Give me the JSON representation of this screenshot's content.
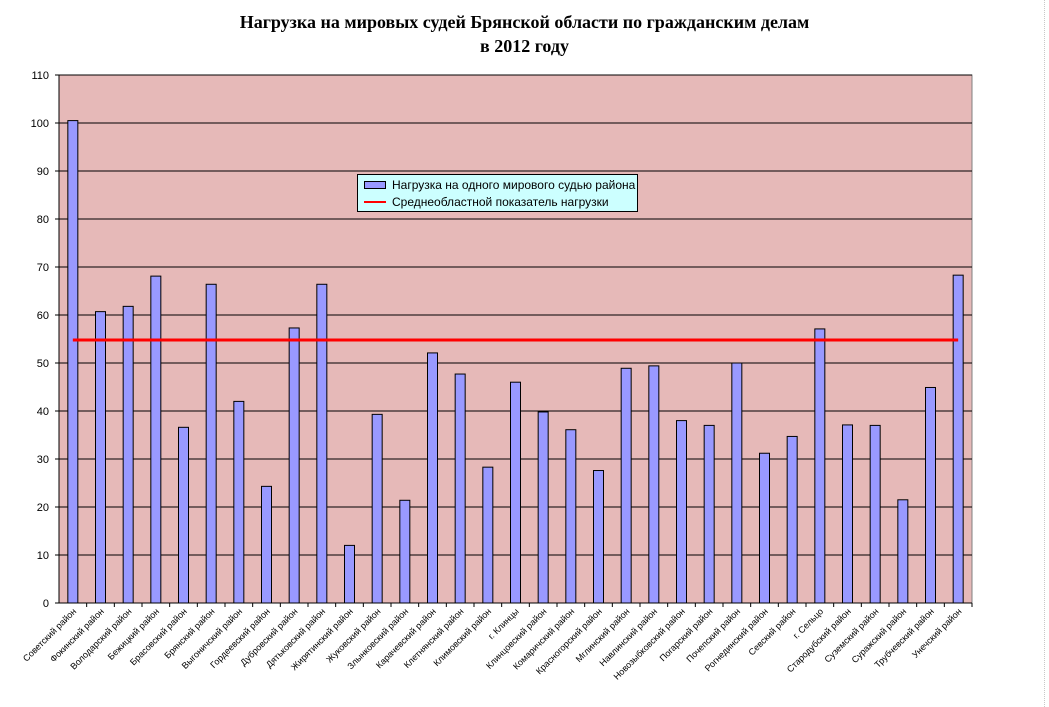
{
  "title_lines": [
    "Нагрузка на мировых судей Брянской области по гражданским делам",
    "в 2012 году"
  ],
  "colors": {
    "plot_background": "#e6b9b8",
    "bar_fill": "#9999ff",
    "bar_stroke": "#000000",
    "average_line": "#ff0000",
    "legend_background": "#ccffff"
  },
  "chart_data": {
    "type": "bar",
    "title": "Нагрузка на мировых судей Брянской области по гражданским делам в 2012 году",
    "categories": [
      "Советский район",
      "Фокинский район",
      "Володарский район",
      "Бежицкий район",
      "Брасовский район",
      "Брянский район",
      "Выгоничский район",
      "Гордеевский район",
      "Дубровский район",
      "Дятьковский район",
      "Жирятинский район",
      "Жуковский район",
      "Злынковский район",
      "Карачевский район",
      "Клетнянский район",
      "Климовский район",
      "г. Клинцы",
      "Клинцовский район",
      "Комаричский район",
      "Красногорский район",
      "Мглинский район",
      "Навлинский район",
      "Новозыбковский район",
      "Погарский район",
      "Почепский район",
      "Рогнединский район",
      "Севский район",
      "г. Сельцо",
      "Стародубский район",
      "Суземский район",
      "Суражский район",
      "Трубчевский район",
      "Унечский район"
    ],
    "series": [
      {
        "name": "Нагрузка на одного мирового судью района",
        "values": [
          100.5,
          60.7,
          61.8,
          68.1,
          36.6,
          66.4,
          42.0,
          24.3,
          57.3,
          66.4,
          12.0,
          39.3,
          21.4,
          52.1,
          47.7,
          28.3,
          46.0,
          39.8,
          36.1,
          27.6,
          48.9,
          49.4,
          38.0,
          37.0,
          50.0,
          31.2,
          34.7,
          57.1,
          37.1,
          37.0,
          21.5,
          44.9,
          68.3
        ]
      },
      {
        "name": "Среднеобластной показатель нагрузки",
        "type": "line",
        "value": 54.8
      }
    ],
    "ylim": [
      0,
      110
    ],
    "yticks": [
      0,
      10,
      20,
      30,
      40,
      50,
      60,
      70,
      80,
      90,
      100,
      110
    ],
    "grid": true,
    "legend_position": "upper-middle"
  }
}
